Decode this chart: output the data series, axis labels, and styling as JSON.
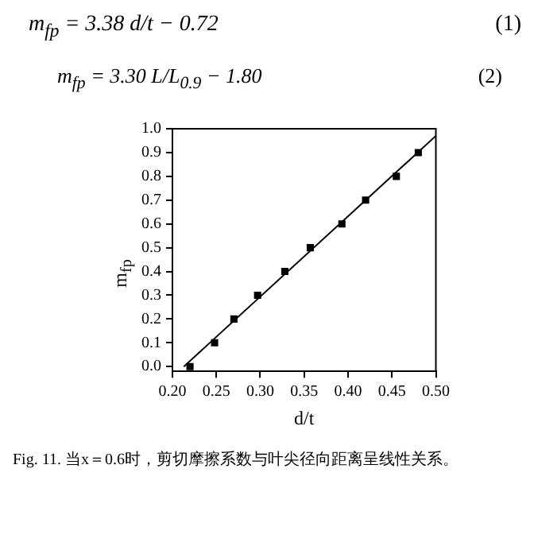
{
  "chart_data": {
    "type": "scatter",
    "xlabel": "d/t",
    "ylabel": "m$_{fp}$",
    "annotations": [
      "m$_{fp}$ = 3.38 d/t − 0.72",
      "(1)",
      "m$_{fp}$ = 3.30 L/L$_{0.9}$ − 1.80",
      "(2)",
      "Fig. 11. 当x＝0.6时，剪切摩擦系数与叶尖径向距离呈线性关系。"
    ],
    "series": [
      {
        "color": "#000000",
        "marker": "square",
        "x": [
          0.22,
          0.248,
          0.27,
          0.297,
          0.328,
          0.357,
          0.393,
          0.42,
          0.455,
          0.48
        ],
        "values": [
          0,
          0.1,
          0.2,
          0.3,
          0.4,
          0.5,
          0.6,
          0.7,
          0.8,
          0.9
        ]
      },
      {
        "type": "line",
        "color": "#000000",
        "marker": "none",
        "x": [
          0.213,
          0.5
        ],
        "values": [
          0,
          0.97
        ]
      }
    ],
    "xlim": [
      0.2,
      0.5
    ],
    "xticks": [
      {
        "value": 0.2,
        "label": "0.20"
      },
      {
        "value": 0.25,
        "label": "0.25"
      },
      {
        "value": 0.3,
        "label": "0.30"
      },
      {
        "value": 0.35,
        "label": "0.35"
      },
      {
        "value": 0.4,
        "label": "0.40"
      },
      {
        "value": 0.45,
        "label": "0.45"
      },
      {
        "value": 0.5,
        "label": "0.50"
      }
    ],
    "ylim": [
      -0.02,
      1.0
    ],
    "yticks": [
      {
        "value": 0,
        "label": "0.0"
      },
      {
        "value": 0.1,
        "label": "0.1"
      },
      {
        "value": 0.2,
        "label": "0.2"
      },
      {
        "value": 0.3,
        "label": "0.3"
      },
      {
        "value": 0.4,
        "label": "0.4"
      },
      {
        "value": 0.5,
        "label": "0.5"
      },
      {
        "value": 0.6,
        "label": "0.6"
      },
      {
        "value": 0.7,
        "label": "0.7"
      },
      {
        "value": 0.8,
        "label": "0.8"
      },
      {
        "value": 0.9,
        "label": "0.9"
      },
      {
        "value": 1.0,
        "label": "1.0"
      }
    ],
    "grid": false,
    "legend": false,
    "line_style": "solid"
  }
}
